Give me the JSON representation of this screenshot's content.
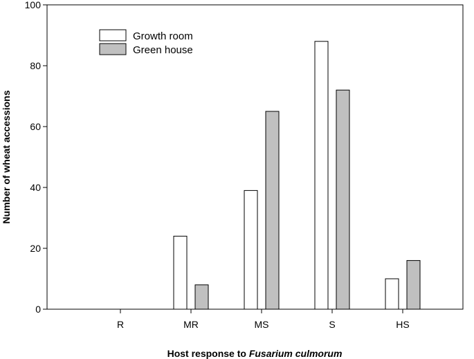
{
  "chart_data": {
    "type": "bar",
    "categories": [
      "R",
      "MR",
      "MS",
      "S",
      "HS"
    ],
    "series": [
      {
        "name": "Growth room",
        "values": [
          0,
          24,
          39,
          88,
          10
        ],
        "color": "#ffffff"
      },
      {
        "name": "Green house",
        "values": [
          0,
          8,
          65,
          72,
          16
        ],
        "color": "#c0c0c0"
      }
    ],
    "title": "",
    "xlabel": {
      "prefix": "Host response to ",
      "italic": "Fusarium culmorum"
    },
    "ylabel": "Number of wheat accessions",
    "ylim": [
      0,
      100
    ],
    "yticks": [
      0,
      20,
      40,
      60,
      80,
      100
    ],
    "grid": false,
    "legend": "top-left"
  }
}
